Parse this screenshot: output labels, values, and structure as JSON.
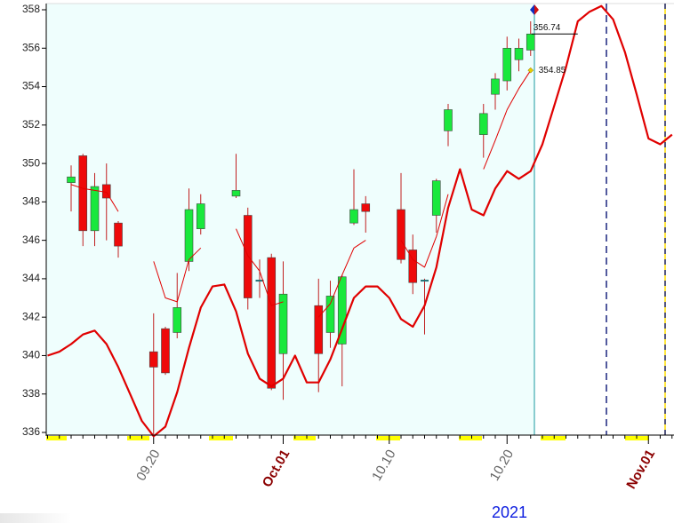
{
  "chart_data": {
    "type": "candlestick",
    "categories": [
      null,
      null,
      null,
      null,
      null,
      null,
      null,
      null,
      null,
      "09.20",
      null,
      null,
      null,
      null,
      null,
      null,
      null,
      null,
      null,
      null,
      "Oct.01",
      null,
      null,
      null,
      null,
      null,
      null,
      null,
      null,
      "10.10",
      null,
      null,
      null,
      null,
      null,
      null,
      null,
      null,
      null,
      "10.20",
      null,
      null,
      null,
      null,
      null,
      null,
      null,
      null,
      null,
      null,
      null,
      "Nov.01",
      null,
      null
    ],
    "ohlc": {
      "open": [
        null,
        null,
        349.0,
        350.4,
        346.5,
        348.9,
        346.9,
        null,
        null,
        340.2,
        341.4,
        341.2,
        344.9,
        346.6,
        null,
        null,
        348.3,
        347.3,
        343.9,
        345.1,
        340.1,
        null,
        null,
        342.6,
        341.2,
        340.6,
        346.9,
        347.9,
        null,
        null,
        347.6,
        345.5,
        343.9,
        347.3,
        351.7,
        null,
        null,
        351.5,
        353.6,
        354.3,
        355.4,
        355.9,
        null,
        null,
        null,
        null,
        null,
        null,
        null,
        null,
        null,
        null,
        null,
        null
      ],
      "high": [
        null,
        null,
        349.9,
        350.5,
        349.5,
        350.0,
        347.0,
        null,
        null,
        342.2,
        341.5,
        344.3,
        348.7,
        348.4,
        null,
        null,
        350.5,
        347.7,
        345.0,
        345.3,
        344.9,
        null,
        null,
        344.0,
        343.9,
        344.2,
        349.7,
        348.3,
        null,
        null,
        349.5,
        346.3,
        344.0,
        349.2,
        353.1,
        null,
        null,
        353.1,
        354.7,
        356.6,
        356.5,
        357.4,
        null,
        null,
        null,
        null,
        null,
        null,
        null,
        null,
        null,
        null,
        null,
        null
      ],
      "low": [
        null,
        null,
        347.5,
        345.7,
        345.7,
        346.0,
        345.1,
        null,
        null,
        335.9,
        339.0,
        340.9,
        344.4,
        346.3,
        null,
        null,
        348.2,
        342.4,
        343.0,
        338.2,
        337.7,
        null,
        null,
        338.1,
        340.4,
        338.4,
        346.8,
        346.4,
        null,
        null,
        344.8,
        343.2,
        341.1,
        346.4,
        350.9,
        null,
        null,
        350.3,
        352.8,
        353.8,
        354.8,
        355.6,
        null,
        null,
        null,
        null,
        null,
        null,
        null,
        null,
        null,
        null,
        null,
        null
      ],
      "close": [
        null,
        null,
        349.3,
        346.5,
        348.8,
        348.2,
        345.7,
        null,
        null,
        339.4,
        339.1,
        342.5,
        347.6,
        347.9,
        null,
        null,
        348.6,
        343.0,
        343.9,
        338.3,
        343.2,
        null,
        null,
        340.1,
        343.1,
        344.1,
        347.6,
        347.5,
        null,
        null,
        345.0,
        343.8,
        343.9,
        349.1,
        352.8,
        null,
        null,
        352.6,
        354.4,
        356.0,
        356.0,
        356.74,
        null,
        null,
        null,
        null,
        null,
        null,
        null,
        null,
        null,
        null,
        null,
        null
      ],
      "up_color": "#19e83c",
      "down_color": "#ee0a0a",
      "flat_color": "#1f6f74"
    },
    "lines": [
      {
        "color": "#e00000",
        "width": 1,
        "values": [
          null,
          null,
          348.9,
          348.7,
          348.6,
          348.5,
          347.5,
          null,
          null,
          344.9,
          343.0,
          342.8,
          345.0,
          345.6,
          null,
          null,
          346.6,
          345.2,
          344.4,
          342.6,
          342.8,
          null,
          null,
          342.0,
          342.7,
          344.2,
          345.6,
          346.0,
          null,
          null,
          346.0,
          345.0,
          344.6,
          346.2,
          348.4,
          null,
          null,
          349.7,
          351.2,
          352.8,
          353.9,
          354.85,
          null,
          null,
          null,
          null,
          null,
          null,
          null,
          null,
          null,
          null,
          null,
          null
        ]
      },
      {
        "color": "#e00000",
        "width": 2.2,
        "values": [
          340.0,
          340.2,
          340.6,
          341.1,
          341.3,
          340.6,
          339.4,
          338.0,
          336.6,
          335.8,
          336.3,
          338.1,
          340.4,
          342.5,
          343.6,
          343.7,
          342.3,
          340.1,
          338.8,
          338.4,
          338.8,
          340.0,
          338.6,
          338.6,
          339.8,
          341.4,
          343.0,
          343.6,
          343.6,
          343.0,
          341.9,
          341.5,
          342.6,
          344.6,
          347.7,
          349.7,
          347.6,
          347.3,
          348.7,
          349.6,
          349.2,
          349.6,
          351.0,
          353.0,
          355.0,
          357.4,
          357.9,
          358.2,
          357.5,
          355.8,
          353.6,
          351.3,
          351.0,
          351.5
        ]
      }
    ],
    "annotations": [
      356.74,
      354.85
    ],
    "xlabel": "2021",
    "ylim": [
      336,
      358
    ],
    "yticks": [
      336,
      338,
      340,
      342,
      344,
      346,
      348,
      350,
      352,
      354,
      356,
      358
    ]
  }
}
